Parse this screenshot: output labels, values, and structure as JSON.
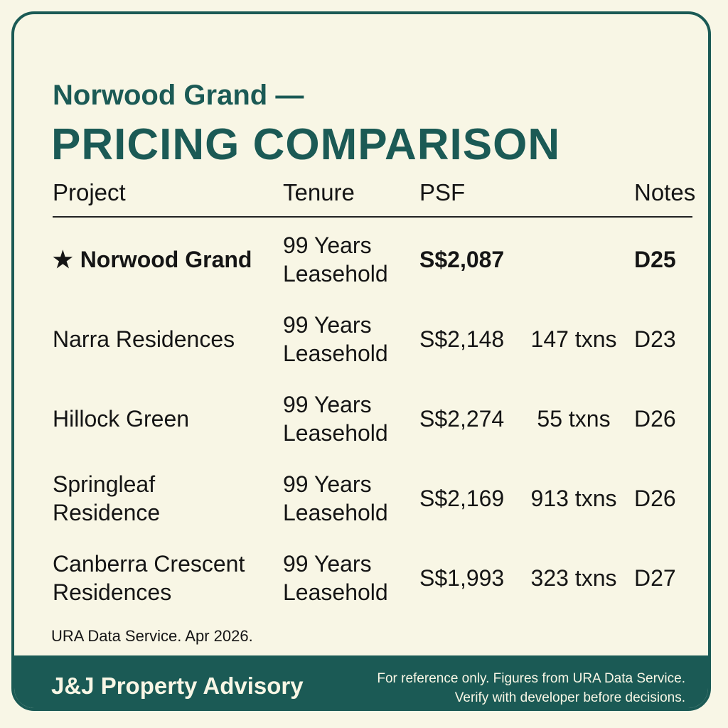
{
  "header": {
    "title_line1": "Norwood Grand —",
    "title_line2": "PRICING COMPARISON"
  },
  "table": {
    "columns": [
      "Project",
      "Tenure",
      "PSF",
      "Notes"
    ],
    "rows": [
      {
        "project": "Norwood Grand",
        "tenure": "99 Years Leasehold",
        "psf": "S$2,087",
        "notes": "D25",
        "highlight": true
      },
      {
        "project": "Narra Residences",
        "tenure": "99 Years Leasehold",
        "psf": "S$2,148",
        "txns": "147 txns",
        "notes": "D23"
      },
      {
        "project": "Hillock Green",
        "tenure": "99 Years Leasehold",
        "psf": "S$2,274",
        "txns": "55 txns",
        "notes": "D26"
      },
      {
        "project": "Springleaf Residence",
        "tenure": "99 Years Leasehold",
        "psf": "S$2,169",
        "txns": "913 txns",
        "notes": "D26"
      },
      {
        "project": "Canberra Crescent Residences",
        "tenure": "99 Years Leasehold",
        "psf": "S$1,993",
        "txns": "323 txns",
        "notes": "D27"
      }
    ],
    "source": "URA Data Service. Apr 2026."
  },
  "footer": {
    "brand": "J&J Property Advisory",
    "disclaimer": [
      "For reference only. Figures from URA Data Service.",
      "Verify with developer before decisions."
    ]
  }
}
